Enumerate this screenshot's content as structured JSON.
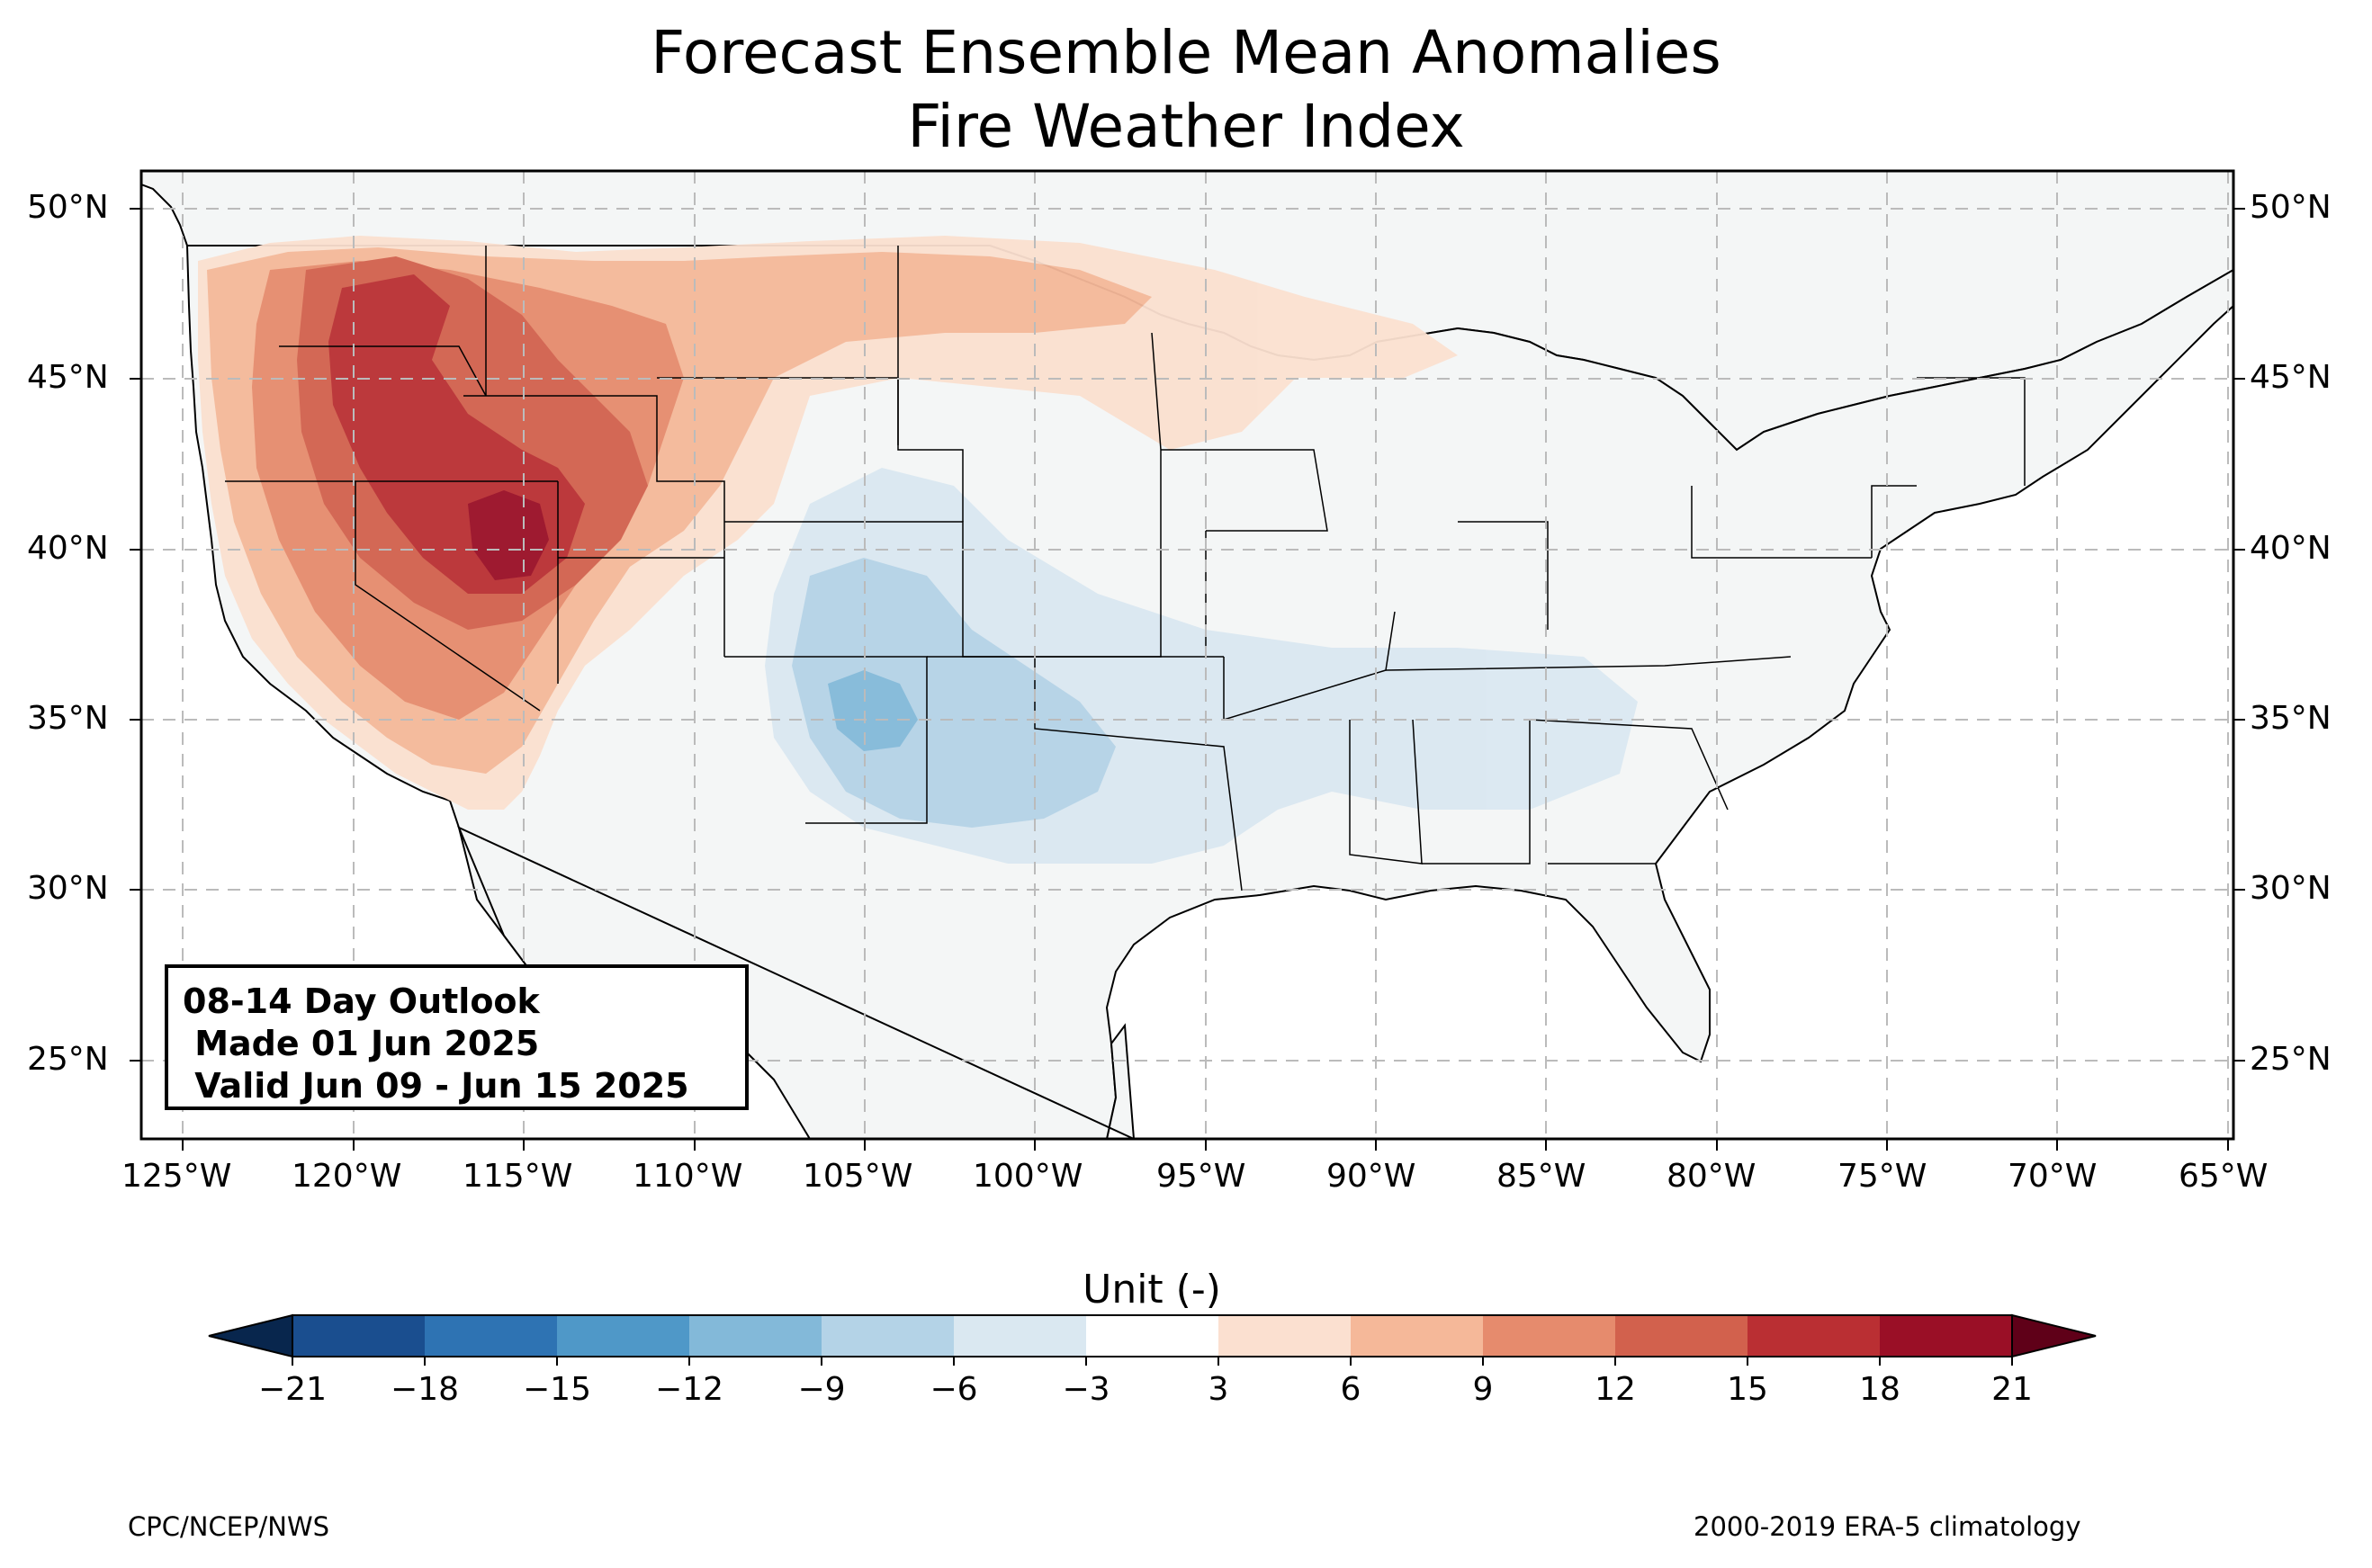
{
  "title": {
    "line1": "Forecast Ensemble Mean Anomalies",
    "line2": "Fire Weather Index"
  },
  "map": {
    "lon_range": [
      -126.3,
      -64.9
    ],
    "lat_range": [
      22.8,
      51.2
    ],
    "lon_ticks": [
      "125°W",
      "120°W",
      "115°W",
      "110°W",
      "105°W",
      "100°W",
      "95°W",
      "90°W",
      "85°W",
      "80°W",
      "75°W",
      "70°W",
      "65°W"
    ],
    "lon_tick_values": [
      -125,
      -120,
      -115,
      -110,
      -105,
      -100,
      -95,
      -90,
      -85,
      -80,
      -75,
      -70,
      -65
    ],
    "lat_ticks": [
      "50°N",
      "45°N",
      "40°N",
      "35°N",
      "30°N",
      "25°N"
    ],
    "lat_tick_values": [
      50,
      45,
      40,
      35,
      30,
      25
    ],
    "gridlines": true,
    "land_color": "#f4f6f6",
    "ocean_color": "#ffffff"
  },
  "outlook": {
    "line1": "08-14 Day Outlook",
    "line2": " Made 01 Jun 2025",
    "line3": " Valid Jun 09 - Jun 15 2025"
  },
  "colorbar": {
    "title": "Unit (-)",
    "ticks": [
      "−21",
      "−18",
      "−15",
      "−12",
      "−9",
      "−6",
      "−3",
      "3",
      "6",
      "9",
      "12",
      "15",
      "18",
      "21"
    ],
    "bounds": [
      -21,
      -18,
      -15,
      -12,
      -9,
      -6,
      -3,
      3,
      6,
      9,
      12,
      15,
      18,
      21
    ],
    "colors": [
      "#1a4e8f",
      "#2e73b3",
      "#4f98c8",
      "#83b9d9",
      "#b4d3e7",
      "#dae8f1",
      "#ffffff",
      "#fbe0d0",
      "#f5b899",
      "#e68b6d",
      "#d2614d",
      "#ba2f33",
      "#9a0f26"
    ],
    "extend_low_color": "#08264d",
    "extend_high_color": "#5f0018"
  },
  "anomaly_regions": [
    {
      "name": "northwest-high-fwi",
      "bin": "3 to 6",
      "color": "#fbe0d0"
    },
    {
      "name": "great-basin-core",
      "bin": "18 to 21",
      "color": "#9a0f26"
    },
    {
      "name": "southern-plains-low-fwi",
      "bin": "-12 to -9",
      "color": "#83b9d9"
    },
    {
      "name": "southeast-low-fwi",
      "bin": "-6 to -3",
      "color": "#dae8f1"
    }
  ],
  "footer": {
    "left": "CPC/NCEP/NWS",
    "right": "2000-2019 ERA-5 climatology"
  }
}
